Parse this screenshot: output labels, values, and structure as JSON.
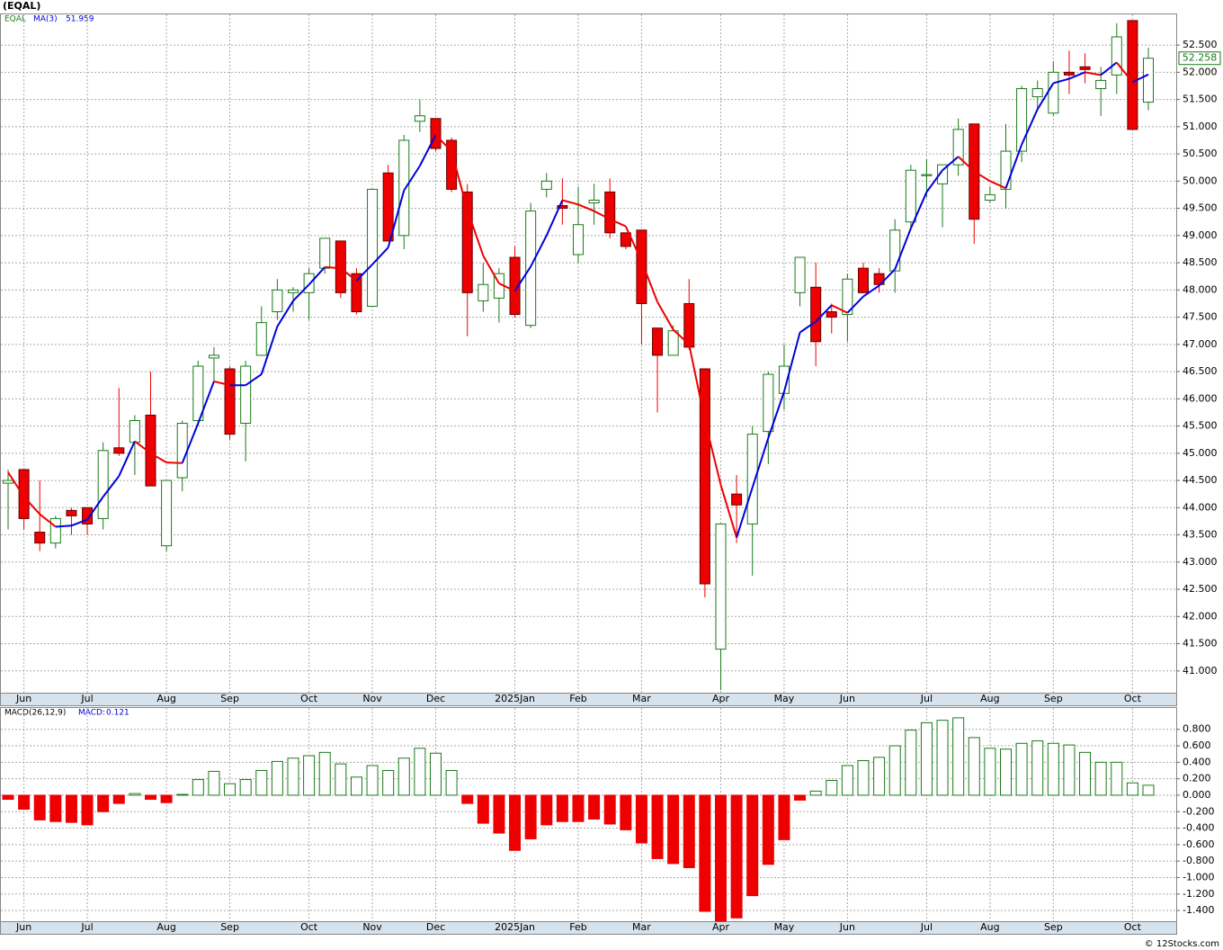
{
  "header": "(EQAL)",
  "footer": "© 12Stocks.com",
  "chart_data": [
    {
      "type": "candlestick",
      "categories": [
        null,
        "Jun",
        null,
        null,
        null,
        "Jul",
        null,
        null,
        null,
        null,
        "Aug",
        null,
        null,
        null,
        "Sep",
        null,
        null,
        null,
        null,
        "Oct",
        null,
        null,
        null,
        "Nov",
        null,
        null,
        null,
        "Dec",
        null,
        null,
        null,
        null,
        "2025Jan",
        null,
        null,
        null,
        "Feb",
        null,
        null,
        null,
        "Mar",
        null,
        null,
        null,
        null,
        "Apr",
        null,
        null,
        null,
        "May",
        null,
        null,
        null,
        "Jun",
        null,
        null,
        null,
        null,
        "Jul",
        null,
        null,
        null,
        "Aug",
        null,
        null,
        null,
        "Sep",
        null,
        null,
        null,
        null,
        "Oct",
        null
      ],
      "series": [
        {
          "name": "EQAL",
          "up_color": "#1a7a1a",
          "down_color": "#ee0000",
          "open": [
            44.45,
            44.7,
            43.55,
            43.35,
            43.95,
            44.0,
            43.8,
            45.1,
            45.2,
            45.7,
            43.3,
            44.55,
            45.6,
            46.75,
            46.55,
            45.55,
            46.8,
            47.6,
            47.95,
            47.95,
            48.4,
            48.9,
            48.3,
            47.7,
            50.15,
            49.0,
            51.1,
            51.15,
            50.75,
            49.8,
            47.8,
            47.85,
            48.6,
            47.35,
            49.85,
            49.55,
            48.65,
            49.6,
            49.8,
            49.05,
            49.1,
            47.3,
            46.8,
            47.75,
            46.55,
            41.4,
            44.25,
            43.7,
            45.4,
            46.1,
            47.95,
            48.05,
            47.6,
            47.55,
            48.4,
            48.3,
            48.35,
            49.25,
            50.1,
            49.95,
            50.3,
            51.05,
            49.65,
            49.85,
            50.55,
            51.55,
            51.25,
            52.0,
            52.1,
            51.7,
            51.95,
            52.95,
            51.45
          ],
          "high": [
            44.7,
            44.7,
            44.5,
            43.85,
            44.0,
            44.0,
            45.2,
            46.2,
            45.7,
            46.5,
            44.5,
            45.6,
            46.7,
            46.95,
            46.6,
            46.7,
            47.7,
            48.2,
            48.05,
            48.4,
            48.95,
            48.9,
            48.4,
            49.85,
            50.3,
            50.85,
            51.5,
            51.15,
            50.8,
            49.95,
            48.5,
            48.4,
            48.8,
            49.6,
            50.15,
            50.05,
            49.9,
            49.95,
            50.05,
            49.05,
            49.1,
            47.3,
            47.35,
            48.2,
            46.55,
            43.7,
            44.6,
            45.5,
            46.5,
            47.0,
            48.6,
            48.5,
            47.75,
            48.3,
            48.5,
            48.4,
            49.3,
            50.3,
            50.4,
            50.3,
            51.15,
            51.05,
            49.9,
            51.05,
            51.75,
            51.85,
            52.2,
            52.4,
            52.35,
            52.1,
            52.9,
            52.95,
            52.45
          ],
          "low": [
            43.6,
            43.6,
            43.2,
            43.25,
            43.5,
            43.5,
            43.6,
            44.95,
            44.6,
            44.4,
            43.2,
            44.3,
            45.5,
            46.3,
            45.25,
            44.85,
            46.8,
            47.45,
            47.6,
            47.45,
            48.3,
            47.85,
            47.55,
            47.7,
            48.9,
            48.75,
            50.9,
            50.55,
            49.8,
            47.15,
            47.6,
            47.4,
            47.5,
            47.3,
            49.7,
            49.2,
            48.5,
            49.2,
            48.95,
            48.75,
            47.0,
            45.75,
            46.8,
            46.9,
            42.35,
            40.65,
            43.35,
            42.75,
            44.8,
            45.8,
            47.7,
            46.6,
            47.2,
            47.05,
            47.95,
            47.95,
            47.95,
            49.1,
            49.7,
            49.15,
            50.1,
            48.85,
            49.6,
            49.5,
            50.35,
            51.3,
            51.2,
            51.6,
            51.8,
            51.2,
            51.6,
            50.95,
            51.3
          ],
          "close": [
            44.5,
            43.8,
            43.35,
            43.8,
            43.85,
            43.7,
            45.05,
            45.0,
            45.6,
            44.4,
            44.5,
            45.55,
            46.6,
            46.8,
            45.35,
            46.6,
            47.4,
            48.0,
            48.0,
            48.3,
            48.95,
            47.95,
            47.6,
            49.85,
            48.9,
            50.75,
            51.2,
            50.6,
            49.85,
            47.95,
            48.1,
            48.3,
            47.55,
            49.45,
            50.0,
            49.5,
            49.2,
            49.65,
            49.05,
            48.8,
            47.75,
            46.8,
            47.25,
            46.95,
            42.6,
            43.7,
            44.05,
            45.35,
            46.45,
            46.6,
            48.6,
            47.05,
            47.5,
            48.2,
            47.95,
            48.1,
            49.1,
            50.2,
            50.12,
            50.3,
            50.95,
            49.3,
            49.75,
            50.55,
            51.7,
            51.7,
            52.0,
            51.95,
            52.05,
            51.85,
            52.65,
            50.95,
            52.258
          ]
        },
        {
          "name": "MA(3)",
          "rising_color": "#0000dd",
          "falling_color": "#ee0000",
          "values": [
            44.65,
            44.2,
            43.88,
            43.65,
            43.67,
            43.78,
            44.2,
            44.58,
            45.22,
            45.0,
            44.83,
            44.82,
            45.55,
            46.32,
            46.25,
            46.25,
            46.45,
            47.33,
            47.8,
            48.1,
            48.42,
            48.4,
            48.17,
            48.47,
            48.78,
            49.83,
            50.28,
            50.85,
            50.55,
            49.47,
            48.63,
            48.12,
            47.98,
            48.43,
            49.0,
            49.65,
            49.57,
            49.45,
            49.3,
            49.17,
            48.53,
            47.78,
            47.27,
            47.0,
            45.6,
            44.42,
            43.45,
            44.37,
            45.28,
            46.13,
            47.22,
            47.42,
            47.72,
            47.58,
            47.88,
            48.08,
            48.38,
            49.13,
            49.8,
            50.2,
            50.45,
            50.18,
            50.0,
            49.87,
            50.67,
            51.32,
            51.8,
            51.88,
            52.0,
            51.95,
            52.18,
            51.82,
            51.959
          ]
        }
      ],
      "ylim": [
        40.6,
        53.08
      ],
      "yticks": [
        {
          "value": 41,
          "label": "41.000"
        },
        {
          "value": 41.5,
          "label": "41.500"
        },
        {
          "value": 42,
          "label": "42.000"
        },
        {
          "value": 42.5,
          "label": "42.500"
        },
        {
          "value": 43,
          "label": "43.000"
        },
        {
          "value": 43.5,
          "label": "43.500"
        },
        {
          "value": 44,
          "label": "44.000"
        },
        {
          "value": 44.5,
          "label": "44.500"
        },
        {
          "value": 45,
          "label": "45.000"
        },
        {
          "value": 45.5,
          "label": "45.500"
        },
        {
          "value": 46,
          "label": "46.000"
        },
        {
          "value": 46.5,
          "label": "46.500"
        },
        {
          "value": 47,
          "label": "47.000"
        },
        {
          "value": 47.5,
          "label": "47.500"
        },
        {
          "value": 48,
          "label": "48.000"
        },
        {
          "value": 48.5,
          "label": "48.500"
        },
        {
          "value": 49,
          "label": "49.000"
        },
        {
          "value": 49.5,
          "label": "49.500"
        },
        {
          "value": 50,
          "label": "50.000"
        },
        {
          "value": 50.5,
          "label": "50.500"
        },
        {
          "value": 51,
          "label": "51.000"
        },
        {
          "value": 51.5,
          "label": "51.500"
        },
        {
          "value": 52,
          "label": "52.000"
        },
        {
          "value": 52.5,
          "label": "52.500"
        }
      ],
      "grid": true
    },
    {
      "type": "bar",
      "name": "MACD(26,12,9)",
      "current_label": "MACD:",
      "categories": [
        null,
        "Jun",
        null,
        null,
        null,
        "Jul",
        null,
        null,
        null,
        null,
        "Aug",
        null,
        null,
        null,
        "Sep",
        null,
        null,
        null,
        null,
        "Oct",
        null,
        null,
        null,
        "Nov",
        null,
        null,
        null,
        "Dec",
        null,
        null,
        null,
        null,
        "2025Jan",
        null,
        null,
        null,
        "Feb",
        null,
        null,
        null,
        "Mar",
        null,
        null,
        null,
        null,
        "Apr",
        null,
        null,
        null,
        "May",
        null,
        null,
        null,
        "Jun",
        null,
        null,
        null,
        null,
        "Jul",
        null,
        null,
        null,
        "Aug",
        null,
        null,
        null,
        "Sep",
        null,
        null,
        null,
        null,
        "Oct",
        null
      ],
      "values": [
        -0.05,
        -0.17,
        -0.3,
        -0.32,
        -0.33,
        -0.36,
        -0.2,
        -0.1,
        0.02,
        -0.05,
        -0.09,
        0.01,
        0.19,
        0.29,
        0.14,
        0.19,
        0.3,
        0.41,
        0.45,
        0.48,
        0.52,
        0.38,
        0.22,
        0.36,
        0.3,
        0.45,
        0.57,
        0.51,
        0.3,
        -0.1,
        -0.34,
        -0.46,
        -0.67,
        -0.53,
        -0.36,
        -0.32,
        -0.32,
        -0.29,
        -0.35,
        -0.42,
        -0.58,
        -0.77,
        -0.83,
        -0.88,
        -1.41,
        -1.53,
        -1.49,
        -1.22,
        -0.84,
        -0.54,
        -0.06,
        0.05,
        0.18,
        0.36,
        0.42,
        0.46,
        0.6,
        0.79,
        0.88,
        0.91,
        0.94,
        0.7,
        0.57,
        0.56,
        0.63,
        0.66,
        0.63,
        0.61,
        0.52,
        0.4,
        0.4,
        0.15,
        0.121
      ],
      "positive_color": "#1a7a1a",
      "negative_color": "#ee0000",
      "ylim": [
        -1.53,
        1.07
      ],
      "yticks": [
        {
          "value": 0.8,
          "label": "0.800"
        },
        {
          "value": 0.6,
          "label": "0.600"
        },
        {
          "value": 0.4,
          "label": "0.400"
        },
        {
          "value": 0.2,
          "label": "0.200"
        },
        {
          "value": 0,
          "label": "0.000"
        },
        {
          "value": -0.2,
          "label": "-0.200"
        },
        {
          "value": -0.4,
          "label": "-0.400"
        },
        {
          "value": -0.6,
          "label": "-0.600"
        },
        {
          "value": -0.8,
          "label": "-0.800"
        },
        {
          "value": -1.0,
          "label": "-1.000"
        },
        {
          "value": -1.2,
          "label": "-1.200"
        },
        {
          "value": -1.4,
          "label": "-1.400"
        }
      ],
      "grid": true
    }
  ]
}
